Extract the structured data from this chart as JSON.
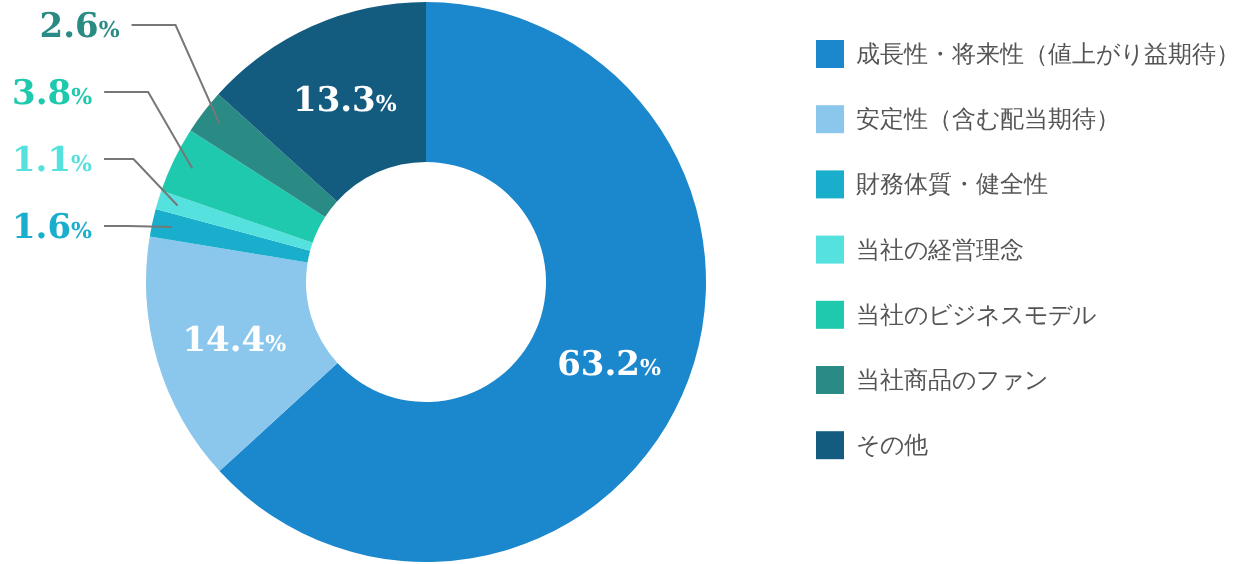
{
  "chart_data": {
    "type": "donut",
    "categories": [
      "成長性・将来性（値上がり益期待）",
      "安定性（含む配当期待）",
      "財務体質・健全性",
      "当社の経営理念",
      "当社のビジネスモデル",
      "当社商品のファン",
      "その他"
    ],
    "values": [
      63.2,
      14.4,
      1.6,
      1.1,
      3.8,
      2.6,
      13.3
    ],
    "colors": [
      "#1b87cd",
      "#8bc6ec",
      "#19afcc",
      "#55e2df",
      "#1ec9ae",
      "#2a8a84",
      "#135c80"
    ],
    "value_labels": [
      "63.2%",
      "14.4%",
      "1.6%",
      "1.1%",
      "3.8%",
      "2.6%",
      "13.3%"
    ],
    "legend": "right"
  }
}
